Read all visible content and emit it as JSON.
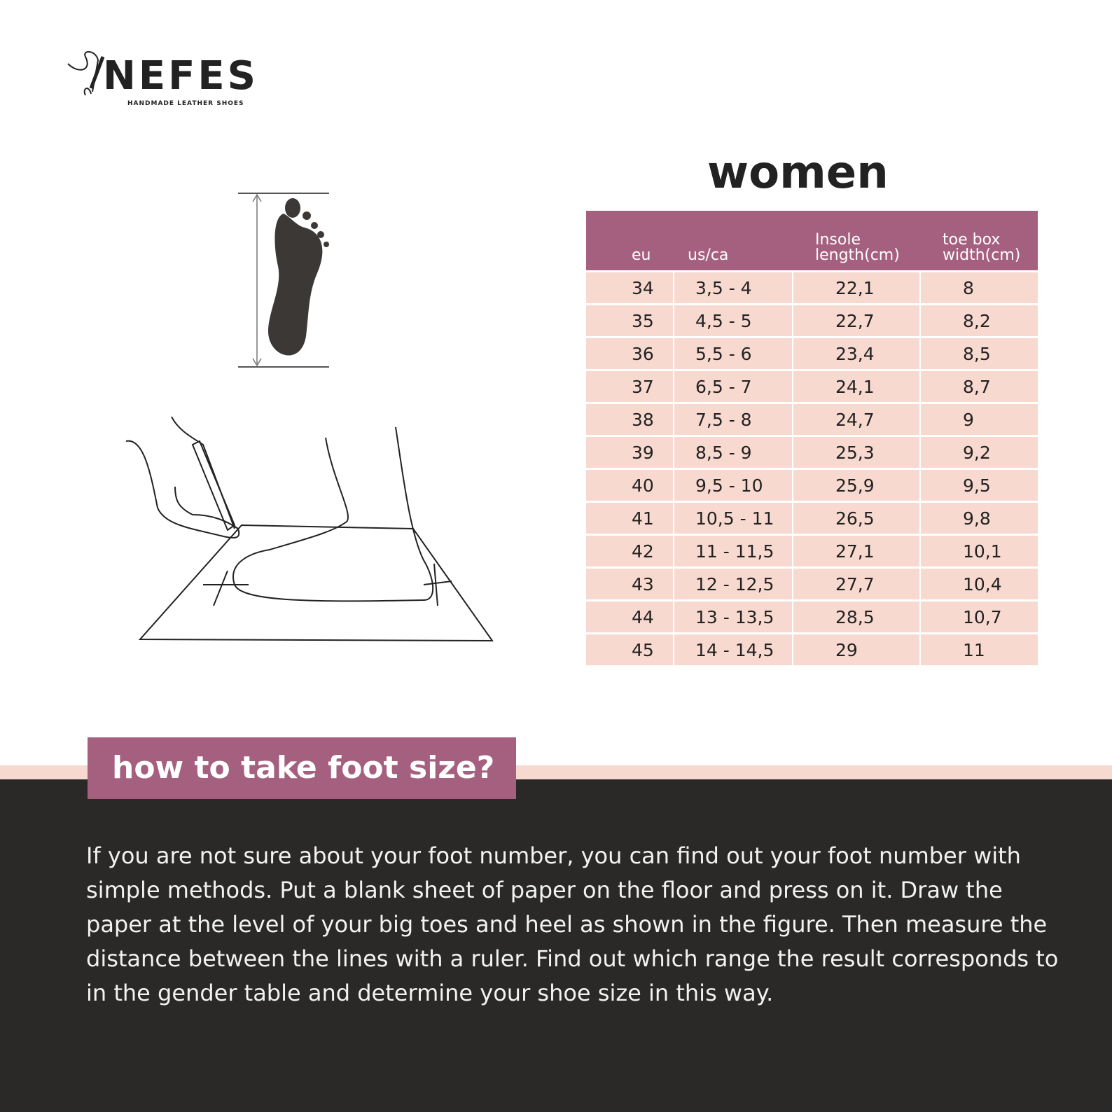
{
  "brand": {
    "name": "NEFES",
    "tagline": "HANDMADE LEATHER SHOES"
  },
  "table_title": "women",
  "table": {
    "headers": [
      "eu",
      "us/ca",
      "Insole length(cm)",
      "toe box width(cm)"
    ],
    "rows": [
      [
        "34",
        "3,5 - 4",
        "22,1",
        "8"
      ],
      [
        "35",
        "4,5 - 5",
        "22,7",
        "8,2"
      ],
      [
        "36",
        "5,5 - 6",
        "23,4",
        "8,5"
      ],
      [
        "37",
        "6,5 - 7",
        "24,1",
        "8,7"
      ],
      [
        "38",
        "7,5 - 8",
        "24,7",
        "9"
      ],
      [
        "39",
        "8,5 - 9",
        "25,3",
        "9,2"
      ],
      [
        "40",
        "9,5 - 10",
        "25,9",
        "9,5"
      ],
      [
        "41",
        "10,5 - 11",
        "26,5",
        "9,8"
      ],
      [
        "42",
        "11 - 11,5",
        "27,1",
        "10,1"
      ],
      [
        "43",
        "12 - 12,5",
        "27,7",
        "10,4"
      ],
      [
        "44",
        "13 - 13,5",
        "28,5",
        "10,7"
      ],
      [
        "45",
        "14 - 14,5",
        "29",
        "11"
      ]
    ]
  },
  "howto": {
    "heading": "how to take foot size?",
    "text": "If you are not sure about your foot number, you can find out your foot number with simple methods. Put a blank sheet of paper on the floor and press on it. Draw the paper at the level of your big toes and heel as shown in the figure. Then measure the distance between the lines with a ruler. Find out which range the result corresponds to in the gender table and determine your shoe size in this way."
  },
  "colors": {
    "accent": "#a5607f",
    "row": "#f8d9cf",
    "dark": "#2a2928"
  }
}
